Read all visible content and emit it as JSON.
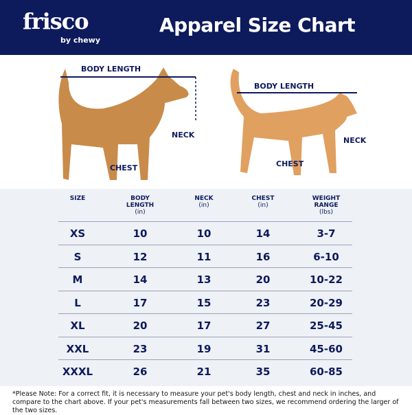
{
  "header": {
    "logo": "frisco",
    "logo_sub": "by chewy",
    "title": "Apparel Size Chart"
  },
  "colors": {
    "brand_navy": "#0d1a5c",
    "table_bg": "#eef1f5"
  },
  "dog": {
    "body_length": "BODY LENGTH",
    "neck": "NECK",
    "chest": "CHEST"
  },
  "cat": {
    "body_length": "BODY LENGTH",
    "neck": "NECK",
    "chest": "CHEST"
  },
  "table": {
    "headers": [
      {
        "label": "SIZE",
        "unit": ""
      },
      {
        "label": "BODY LENGTH",
        "unit": "(in)"
      },
      {
        "label": "NECK",
        "unit": "(in)"
      },
      {
        "label": "CHEST",
        "unit": "(in)"
      },
      {
        "label": "WEIGHT RANGE",
        "unit": "(lbs)"
      }
    ],
    "rows": [
      [
        "XS",
        "10",
        "10",
        "14",
        "3-7"
      ],
      [
        "S",
        "12",
        "11",
        "16",
        "6-10"
      ],
      [
        "M",
        "14",
        "13",
        "20",
        "10-22"
      ],
      [
        "L",
        "17",
        "15",
        "23",
        "20-29"
      ],
      [
        "XL",
        "20",
        "17",
        "27",
        "25-45"
      ],
      [
        "XXL",
        "23",
        "19",
        "31",
        "45-60"
      ],
      [
        "XXXL",
        "26",
        "21",
        "35",
        "60-85"
      ]
    ]
  },
  "note": "*Please Note: For a correct fit, it is necessary to measure your pet's body length, chest and neck in inches, and compare to the chart above. If your pet's measurements fall between two sizes, we recommend ordering the larger of the two sizes."
}
